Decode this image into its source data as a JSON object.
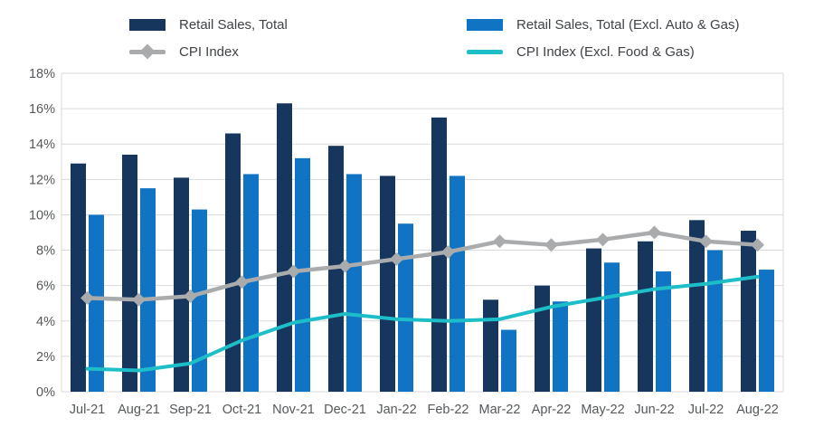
{
  "legend": {
    "items": [
      {
        "id": "retail-total",
        "label": "Retail Sales, Total",
        "type": "bar",
        "color": "#17365d"
      },
      {
        "id": "retail-excl",
        "label": "Retail Sales, Total (Excl. Auto & Gas)",
        "type": "bar",
        "color": "#1173c4"
      },
      {
        "id": "cpi",
        "label": "CPI Index",
        "type": "line-diamond",
        "color": "#a9abad"
      },
      {
        "id": "cpi-excl",
        "label": "CPI Index (Excl. Food & Gas)",
        "type": "line",
        "color": "#1ebec9"
      }
    ]
  },
  "chart_data": {
    "type": "bar",
    "subtype": "grouped bars with overlaid lines",
    "title": "",
    "xlabel": "",
    "ylabel": "",
    "categories": [
      "Jul-21",
      "Aug-21",
      "Sep-21",
      "Oct-21",
      "Nov-21",
      "Dec-21",
      "Jan-22",
      "Feb-22",
      "Mar-22",
      "Apr-22",
      "May-22",
      "Jun-22",
      "Jul-22",
      "Aug-22"
    ],
    "series": [
      {
        "name": "Retail Sales, Total",
        "type": "bar",
        "color": "#17365d",
        "marker": "none",
        "values": [
          12.9,
          13.4,
          12.1,
          14.6,
          16.3,
          13.9,
          12.2,
          15.5,
          5.2,
          6.0,
          8.1,
          8.5,
          9.7,
          9.1
        ]
      },
      {
        "name": "Retail Sales, Total (Excl. Auto & Gas)",
        "type": "bar",
        "color": "#1173c4",
        "marker": "none",
        "values": [
          10.0,
          11.5,
          10.3,
          12.3,
          13.2,
          12.3,
          9.5,
          12.2,
          3.5,
          5.1,
          7.3,
          6.8,
          8.0,
          6.9
        ]
      },
      {
        "name": "CPI Index",
        "type": "line",
        "color": "#a9abad",
        "marker": "diamond",
        "values": [
          5.3,
          5.2,
          5.4,
          6.2,
          6.8,
          7.1,
          7.5,
          7.9,
          8.5,
          8.3,
          8.6,
          9.0,
          8.5,
          8.3
        ]
      },
      {
        "name": "CPI Index (Excl. Food & Gas)",
        "type": "line",
        "color": "#1ebec9",
        "marker": "none",
        "values": [
          1.3,
          1.2,
          1.6,
          2.9,
          3.9,
          4.4,
          4.1,
          4.0,
          4.1,
          4.8,
          5.3,
          5.8,
          6.1,
          6.5
        ]
      }
    ],
    "ylim": [
      0,
      18
    ],
    "ytick_step": 2,
    "yticks": [
      {
        "value": 0,
        "label": "0%"
      },
      {
        "value": 2,
        "label": "2%"
      },
      {
        "value": 4,
        "label": "4%"
      },
      {
        "value": 6,
        "label": "6%"
      },
      {
        "value": 8,
        "label": "8%"
      },
      {
        "value": 10,
        "label": "10%"
      },
      {
        "value": 12,
        "label": "12%"
      },
      {
        "value": 14,
        "label": "14%"
      },
      {
        "value": 16,
        "label": "16%"
      },
      {
        "value": 18,
        "label": "18%"
      }
    ],
    "grid": true,
    "legend_position": "top",
    "colors": {
      "gridline": "#d9dadb",
      "axis_text": "#55585a",
      "background": "#ffffff"
    }
  }
}
